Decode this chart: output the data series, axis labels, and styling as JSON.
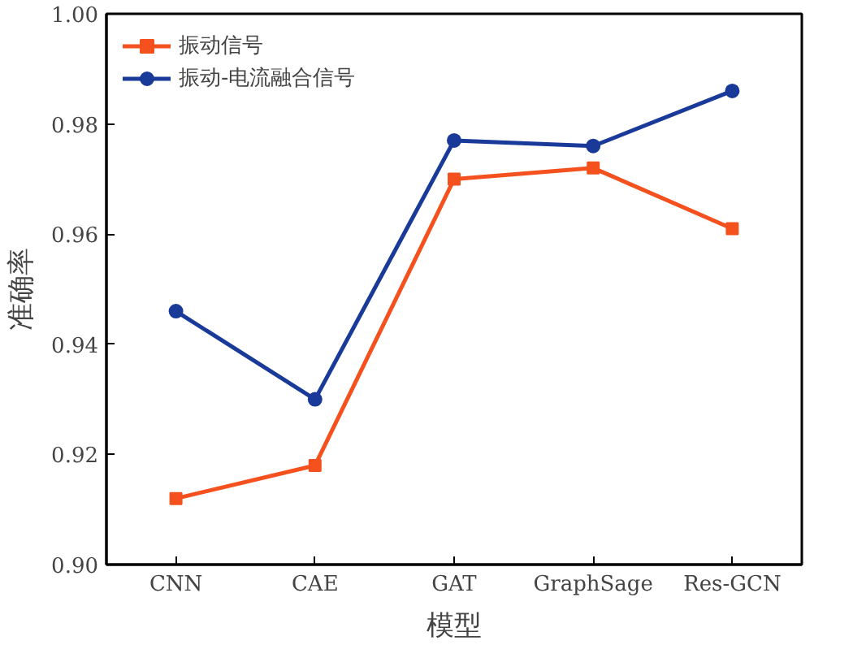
{
  "chart_data": {
    "type": "line",
    "xlabel": "模型",
    "ylabel": "准确率",
    "categories": [
      "CNN",
      "CAE",
      "GAT",
      "GraphSage",
      "Res-GCN"
    ],
    "series": [
      {
        "name": "振动信号",
        "color": "#f4511e",
        "marker": "square",
        "values": [
          0.912,
          0.918,
          0.97,
          0.972,
          0.961
        ]
      },
      {
        "name": "振动-电流融合信号",
        "color": "#1a3a99",
        "marker": "circle",
        "values": [
          0.946,
          0.93,
          0.977,
          0.976,
          0.986
        ]
      }
    ],
    "ylim": [
      0.9,
      1.0
    ],
    "yticks": [
      {
        "value": 0.9,
        "label": "0.90"
      },
      {
        "value": 0.92,
        "label": "0.92"
      },
      {
        "value": 0.94,
        "label": "0.94"
      },
      {
        "value": 0.96,
        "label": "0.96"
      },
      {
        "value": 0.98,
        "label": "0.98"
      },
      {
        "value": 1.0,
        "label": "1.00"
      }
    ],
    "grid": false,
    "legend": "top left",
    "line_style": "solid"
  }
}
